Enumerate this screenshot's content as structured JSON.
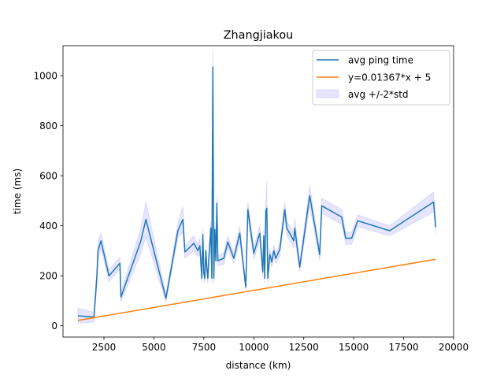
{
  "chart_data": {
    "type": "line",
    "title": "Zhangjiakou",
    "xlabel": "distance (km)",
    "ylabel": "time (ms)",
    "xlim": [
      450,
      20000
    ],
    "ylim": [
      -45,
      1120
    ],
    "x_ticks": [
      2500,
      5000,
      7500,
      10000,
      12500,
      15000,
      17500,
      20000
    ],
    "y_ticks": [
      0,
      200,
      400,
      600,
      800,
      1000
    ],
    "x_tick_labels": [
      "2500",
      "5000",
      "7500",
      "10000",
      "12500",
      "15000",
      "17500",
      "20000"
    ],
    "y_tick_labels": [
      "0",
      "200",
      "400",
      "600",
      "800",
      "1000"
    ],
    "grid": false,
    "legend_position": "top-right",
    "legend": [
      "avg ping time",
      "y=0.01367*x + 5",
      "avg +/-2*std"
    ],
    "series": [
      {
        "name": "avg ping time",
        "color": "#1f77b4",
        "x": [
          1200,
          2000,
          2150,
          2200,
          2350,
          2750,
          3300,
          3350,
          4350,
          4600,
          5600,
          6200,
          6450,
          6550,
          7000,
          7200,
          7300,
          7400,
          7450,
          7500,
          7550,
          7600,
          7650,
          7700,
          7750,
          7850,
          7900,
          7950,
          8000,
          8050,
          8100,
          8150,
          8200,
          8500,
          8700,
          9000,
          9300,
          9600,
          9700,
          10000,
          10300,
          10450,
          10500,
          10550,
          10600,
          10650,
          10700,
          10800,
          10900,
          11000,
          11100,
          11300,
          11550,
          11650,
          12000,
          12050,
          12300,
          12800,
          13300,
          13400,
          14400,
          14600,
          14900,
          15200,
          16800,
          19000,
          19100
        ],
        "y": [
          40,
          35,
          200,
          300,
          340,
          200,
          250,
          115,
          340,
          425,
          110,
          380,
          425,
          295,
          330,
          300,
          320,
          190,
          365,
          210,
          190,
          300,
          230,
          190,
          270,
          390,
          190,
          1035,
          190,
          385,
          260,
          490,
          260,
          270,
          335,
          270,
          370,
          155,
          465,
          290,
          370,
          215,
          360,
          190,
          460,
          470,
          190,
          285,
          255,
          300,
          270,
          305,
          465,
          390,
          340,
          390,
          235,
          520,
          285,
          480,
          435,
          350,
          350,
          420,
          380,
          495,
          395
        ],
        "std": [
          15,
          10,
          20,
          20,
          15,
          12,
          12,
          10,
          25,
          35,
          8,
          15,
          25,
          12,
          15,
          12,
          15,
          10,
          15,
          10,
          10,
          12,
          10,
          10,
          12,
          15,
          10,
          35,
          10,
          15,
          10,
          20,
          10,
          12,
          12,
          10,
          15,
          8,
          15,
          12,
          15,
          10,
          15,
          10,
          15,
          55,
          10,
          12,
          10,
          12,
          10,
          12,
          15,
          15,
          15,
          20,
          10,
          20,
          12,
          15,
          15,
          12,
          12,
          12,
          10,
          20,
          12
        ]
      },
      {
        "name": "y=0.01367*x + 5",
        "color": "#ff7f0e",
        "x": [
          1200,
          19100
        ],
        "y": [
          21.4,
          266.1
        ]
      }
    ]
  }
}
